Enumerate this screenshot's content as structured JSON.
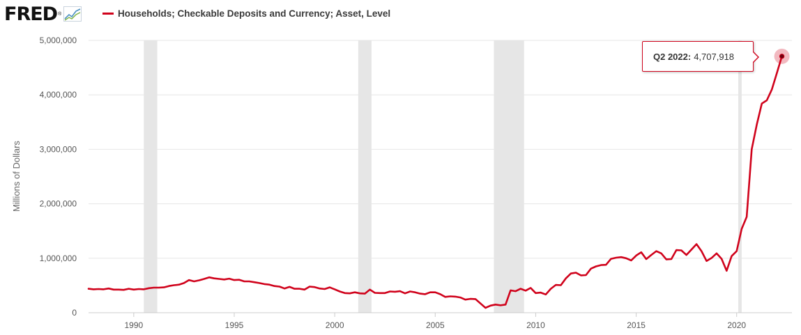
{
  "header": {
    "logo_text": "FRED",
    "logo_mark": "®",
    "logo_icon": "trend-line-icon",
    "series_label": "Households; Checkable Deposits and Currency; Asset, Level"
  },
  "colors": {
    "series": "#d0021b",
    "recession": "#e6e6e6",
    "grid": "#e6e6e6",
    "axis": "#555555"
  },
  "tooltip": {
    "period": "Q2 2022:",
    "value": "4,707,918"
  },
  "chart_data": {
    "type": "line",
    "title": "",
    "xlabel": "",
    "ylabel": "Millions of Dollars",
    "xlim": [
      1987.75,
      2022.75
    ],
    "ylim": [
      0,
      5000000
    ],
    "grid": "horizontal",
    "y_ticks": [
      0,
      1000000,
      2000000,
      3000000,
      4000000,
      5000000
    ],
    "y_tick_labels": [
      "0",
      "1,000,000",
      "2,000,000",
      "3,000,000",
      "4,000,000",
      "5,000,000"
    ],
    "x_ticks": [
      1990,
      1995,
      2000,
      2005,
      2010,
      2015,
      2020
    ],
    "x_tick_labels": [
      "1990",
      "1995",
      "2000",
      "2005",
      "2010",
      "2015",
      "2020"
    ],
    "recessions": [
      [
        1990.5,
        1991.17
      ],
      [
        2001.17,
        2001.83
      ],
      [
        2007.92,
        2009.42
      ],
      [
        2020.08,
        2020.25
      ]
    ],
    "series": [
      {
        "values": [
          [
            1987.75,
            440000
          ],
          [
            1988.0,
            430000
          ],
          [
            1988.25,
            435000
          ],
          [
            1988.5,
            430000
          ],
          [
            1988.75,
            445000
          ],
          [
            1989.0,
            425000
          ],
          [
            1989.25,
            425000
          ],
          [
            1989.5,
            420000
          ],
          [
            1989.75,
            440000
          ],
          [
            1990.0,
            425000
          ],
          [
            1990.25,
            435000
          ],
          [
            1990.5,
            430000
          ],
          [
            1990.75,
            450000
          ],
          [
            1991.0,
            460000
          ],
          [
            1991.25,
            460000
          ],
          [
            1991.5,
            465000
          ],
          [
            1991.75,
            490000
          ],
          [
            1992.0,
            505000
          ],
          [
            1992.25,
            515000
          ],
          [
            1992.5,
            545000
          ],
          [
            1992.75,
            600000
          ],
          [
            1993.0,
            575000
          ],
          [
            1993.25,
            595000
          ],
          [
            1993.5,
            620000
          ],
          [
            1993.75,
            650000
          ],
          [
            1994.0,
            630000
          ],
          [
            1994.25,
            620000
          ],
          [
            1994.5,
            610000
          ],
          [
            1994.75,
            625000
          ],
          [
            1995.0,
            600000
          ],
          [
            1995.25,
            605000
          ],
          [
            1995.5,
            575000
          ],
          [
            1995.75,
            575000
          ],
          [
            1996.0,
            560000
          ],
          [
            1996.25,
            545000
          ],
          [
            1996.5,
            525000
          ],
          [
            1996.75,
            515000
          ],
          [
            1997.0,
            490000
          ],
          [
            1997.25,
            480000
          ],
          [
            1997.5,
            445000
          ],
          [
            1997.75,
            475000
          ],
          [
            1998.0,
            440000
          ],
          [
            1998.25,
            440000
          ],
          [
            1998.5,
            425000
          ],
          [
            1998.75,
            480000
          ],
          [
            1999.0,
            470000
          ],
          [
            1999.25,
            445000
          ],
          [
            1999.5,
            435000
          ],
          [
            1999.75,
            465000
          ],
          [
            2000.0,
            430000
          ],
          [
            2000.25,
            390000
          ],
          [
            2000.5,
            360000
          ],
          [
            2000.75,
            355000
          ],
          [
            2001.0,
            375000
          ],
          [
            2001.25,
            355000
          ],
          [
            2001.5,
            350000
          ],
          [
            2001.75,
            425000
          ],
          [
            2002.0,
            365000
          ],
          [
            2002.25,
            360000
          ],
          [
            2002.5,
            360000
          ],
          [
            2002.75,
            390000
          ],
          [
            2003.0,
            385000
          ],
          [
            2003.25,
            395000
          ],
          [
            2003.5,
            355000
          ],
          [
            2003.75,
            390000
          ],
          [
            2004.0,
            375000
          ],
          [
            2004.25,
            350000
          ],
          [
            2004.5,
            340000
          ],
          [
            2004.75,
            375000
          ],
          [
            2005.0,
            375000
          ],
          [
            2005.25,
            340000
          ],
          [
            2005.5,
            290000
          ],
          [
            2005.75,
            300000
          ],
          [
            2006.0,
            295000
          ],
          [
            2006.25,
            280000
          ],
          [
            2006.5,
            240000
          ],
          [
            2006.75,
            255000
          ],
          [
            2007.0,
            250000
          ],
          [
            2007.25,
            170000
          ],
          [
            2007.5,
            90000
          ],
          [
            2007.75,
            130000
          ],
          [
            2008.0,
            150000
          ],
          [
            2008.25,
            135000
          ],
          [
            2008.5,
            150000
          ],
          [
            2008.75,
            410000
          ],
          [
            2009.0,
            395000
          ],
          [
            2009.25,
            440000
          ],
          [
            2009.5,
            405000
          ],
          [
            2009.75,
            455000
          ],
          [
            2010.0,
            360000
          ],
          [
            2010.25,
            370000
          ],
          [
            2010.5,
            335000
          ],
          [
            2010.75,
            440000
          ],
          [
            2011.0,
            510000
          ],
          [
            2011.25,
            505000
          ],
          [
            2011.5,
            630000
          ],
          [
            2011.75,
            720000
          ],
          [
            2012.0,
            735000
          ],
          [
            2012.25,
            685000
          ],
          [
            2012.5,
            690000
          ],
          [
            2012.75,
            810000
          ],
          [
            2013.0,
            850000
          ],
          [
            2013.25,
            875000
          ],
          [
            2013.5,
            880000
          ],
          [
            2013.75,
            990000
          ],
          [
            2014.0,
            1010000
          ],
          [
            2014.25,
            1020000
          ],
          [
            2014.5,
            1000000
          ],
          [
            2014.75,
            960000
          ],
          [
            2015.0,
            1050000
          ],
          [
            2015.25,
            1110000
          ],
          [
            2015.5,
            985000
          ],
          [
            2015.75,
            1060000
          ],
          [
            2016.0,
            1130000
          ],
          [
            2016.25,
            1090000
          ],
          [
            2016.5,
            980000
          ],
          [
            2016.75,
            985000
          ],
          [
            2017.0,
            1150000
          ],
          [
            2017.25,
            1145000
          ],
          [
            2017.5,
            1060000
          ],
          [
            2017.75,
            1160000
          ],
          [
            2018.0,
            1260000
          ],
          [
            2018.25,
            1130000
          ],
          [
            2018.5,
            950000
          ],
          [
            2018.75,
            1005000
          ],
          [
            2019.0,
            1090000
          ],
          [
            2019.25,
            990000
          ],
          [
            2019.5,
            770000
          ],
          [
            2019.75,
            1040000
          ],
          [
            2020.0,
            1130000
          ],
          [
            2020.25,
            1540000
          ],
          [
            2020.5,
            1760000
          ],
          [
            2020.75,
            3000000
          ],
          [
            2021.0,
            3450000
          ],
          [
            2021.25,
            3840000
          ],
          [
            2021.5,
            3900000
          ],
          [
            2021.75,
            4100000
          ],
          [
            2022.0,
            4400000
          ],
          [
            2022.25,
            4707918
          ]
        ]
      }
    ],
    "highlight": {
      "x": 2022.25,
      "y": 4707918
    }
  }
}
